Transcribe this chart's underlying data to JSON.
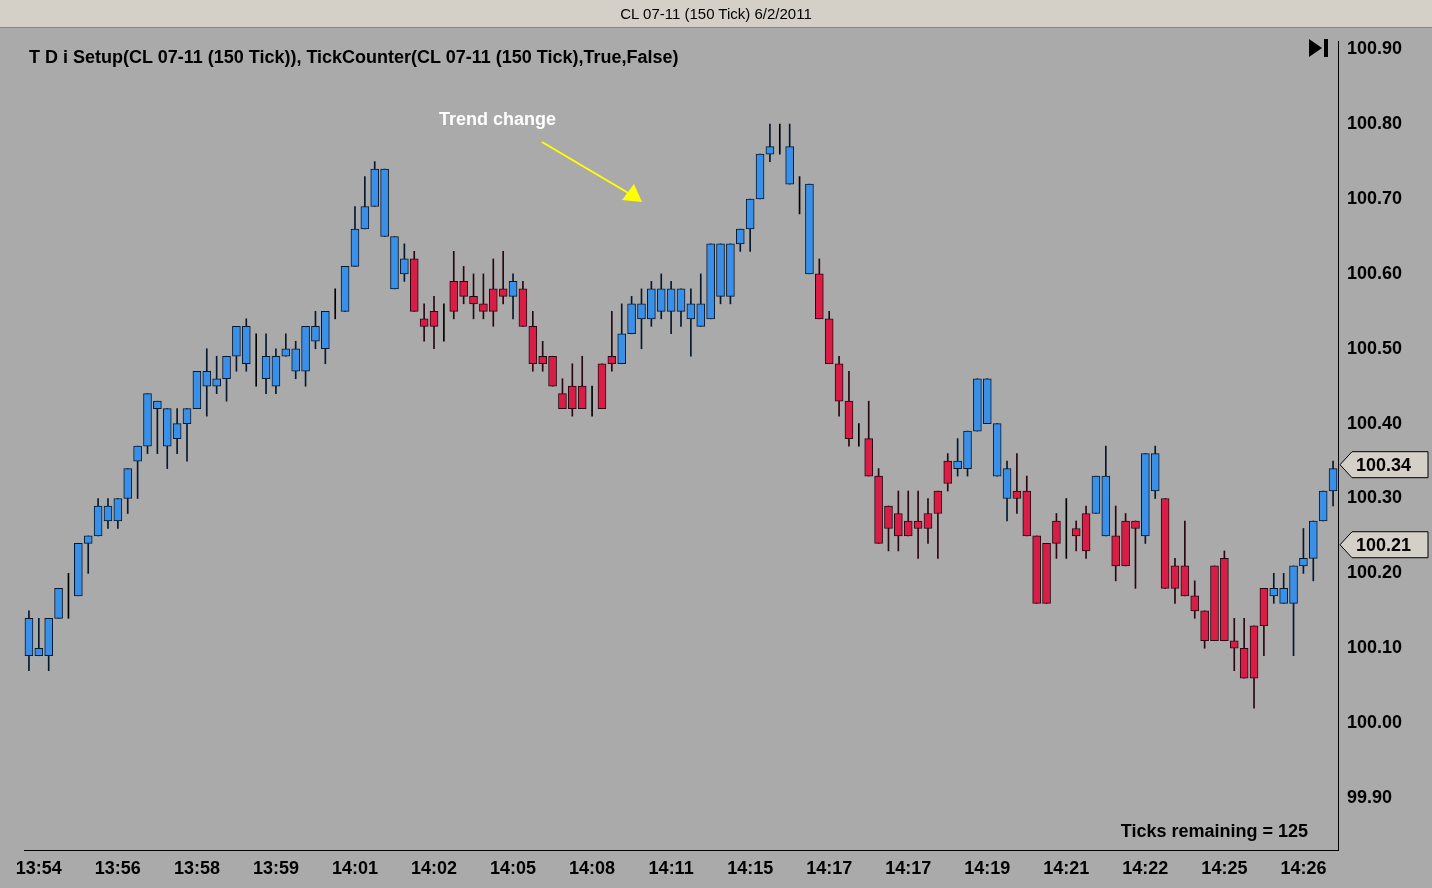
{
  "chart_data": {
    "type": "candlestick",
    "title": "CL 07-11 (150 Tick)  6/2/2011",
    "subtitle": "T D i Setup(CL 07-11 (150 Tick)), TickCounter(CL 07-11 (150 Tick),True,False)",
    "categories": [
      null,
      "13:54",
      null,
      null,
      null,
      null,
      null,
      null,
      null,
      "13:56",
      null,
      null,
      null,
      null,
      null,
      null,
      null,
      "13:58",
      null,
      null,
      null,
      null,
      null,
      null,
      null,
      "13:59",
      null,
      null,
      null,
      null,
      null,
      null,
      null,
      "14:01",
      null,
      null,
      null,
      null,
      null,
      null,
      null,
      "14:02",
      null,
      null,
      null,
      null,
      null,
      null,
      null,
      "14:05",
      null,
      null,
      null,
      null,
      null,
      null,
      null,
      "14:08",
      null,
      null,
      null,
      null,
      null,
      null,
      null,
      "14:11",
      null,
      null,
      null,
      null,
      null,
      null,
      null,
      "14:15",
      null,
      null,
      null,
      null,
      null,
      null,
      null,
      "14:17",
      null,
      null,
      null,
      null,
      null,
      null,
      null,
      "14:17",
      null,
      null,
      null,
      null,
      null,
      null,
      null,
      "14:19",
      null,
      null,
      null,
      null,
      null,
      null,
      null,
      "14:21",
      null,
      null,
      null,
      null,
      null,
      null,
      null,
      "14:22",
      null,
      null,
      null,
      null,
      null,
      null,
      null,
      "14:25",
      null,
      null,
      null,
      null,
      null,
      null,
      null,
      "14:26",
      null,
      null,
      null
    ],
    "ohlc": [
      [
        100.09,
        100.15,
        100.07,
        100.14
      ],
      [
        100.09,
        100.14,
        100.09,
        100.1
      ],
      [
        100.09,
        100.14,
        100.07,
        100.14
      ],
      [
        100.14,
        100.18,
        100.14,
        100.18
      ],
      [
        100.17,
        100.2,
        100.14,
        100.17
      ],
      [
        100.17,
        100.24,
        100.17,
        100.24
      ],
      [
        100.24,
        100.25,
        100.2,
        100.25
      ],
      [
        100.25,
        100.3,
        100.25,
        100.29
      ],
      [
        100.27,
        100.3,
        100.26,
        100.29
      ],
      [
        100.27,
        100.3,
        100.26,
        100.3
      ],
      [
        100.3,
        100.34,
        100.28,
        100.34
      ],
      [
        100.35,
        100.37,
        100.3,
        100.37
      ],
      [
        100.37,
        100.44,
        100.36,
        100.44
      ],
      [
        100.42,
        100.43,
        100.36,
        100.43
      ],
      [
        100.37,
        100.42,
        100.34,
        100.42
      ],
      [
        100.38,
        100.42,
        100.36,
        100.4
      ],
      [
        100.4,
        100.42,
        100.35,
        100.42
      ],
      [
        100.42,
        100.47,
        100.42,
        100.47
      ],
      [
        100.45,
        100.5,
        100.41,
        100.47
      ],
      [
        100.45,
        100.49,
        100.44,
        100.46
      ],
      [
        100.46,
        100.49,
        100.43,
        100.49
      ],
      [
        100.49,
        100.53,
        100.47,
        100.53
      ],
      [
        100.48,
        100.54,
        100.47,
        100.53
      ],
      [
        100.49,
        100.52,
        100.45,
        100.49
      ],
      [
        100.46,
        100.52,
        100.44,
        100.49
      ],
      [
        100.45,
        100.5,
        100.44,
        100.49
      ],
      [
        100.49,
        100.52,
        100.49,
        100.5
      ],
      [
        100.47,
        100.51,
        100.46,
        100.5
      ],
      [
        100.47,
        100.53,
        100.45,
        100.53
      ],
      [
        100.51,
        100.55,
        100.5,
        100.53
      ],
      [
        100.5,
        100.55,
        100.48,
        100.55
      ],
      [
        100.55,
        100.58,
        100.54,
        100.55
      ],
      [
        100.55,
        100.61,
        100.55,
        100.61
      ],
      [
        100.61,
        100.69,
        100.61,
        100.66
      ],
      [
        100.66,
        100.73,
        100.66,
        100.69
      ],
      [
        100.69,
        100.75,
        100.69,
        100.74
      ],
      [
        100.65,
        100.74,
        100.65,
        100.74
      ],
      [
        100.58,
        100.65,
        100.58,
        100.65
      ],
      [
        100.6,
        100.64,
        100.59,
        100.62
      ],
      [
        100.62,
        100.63,
        100.55,
        100.55
      ],
      [
        100.54,
        100.56,
        100.51,
        100.53
      ],
      [
        100.55,
        100.57,
        100.5,
        100.53
      ],
      [
        100.55,
        100.56,
        100.51,
        100.55
      ],
      [
        100.59,
        100.63,
        100.54,
        100.55
      ],
      [
        100.59,
        100.61,
        100.56,
        100.57
      ],
      [
        100.57,
        100.6,
        100.54,
        100.56
      ],
      [
        100.56,
        100.6,
        100.54,
        100.55
      ],
      [
        100.58,
        100.62,
        100.53,
        100.55
      ],
      [
        100.58,
        100.63,
        100.56,
        100.57
      ],
      [
        100.57,
        100.6,
        100.54,
        100.59
      ],
      [
        100.58,
        100.59,
        100.53,
        100.53
      ],
      [
        100.53,
        100.55,
        100.47,
        100.48
      ],
      [
        100.49,
        100.51,
        100.47,
        100.48
      ],
      [
        100.49,
        100.49,
        100.45,
        100.45
      ],
      [
        100.44,
        100.46,
        100.42,
        100.42
      ],
      [
        100.45,
        100.48,
        100.41,
        100.42
      ],
      [
        100.45,
        100.49,
        100.42,
        100.42
      ],
      [
        100.42,
        100.45,
        100.41,
        100.42
      ],
      [
        100.48,
        100.48,
        100.42,
        100.42
      ],
      [
        100.49,
        100.55,
        100.47,
        100.48
      ],
      [
        100.48,
        100.56,
        100.48,
        100.52
      ],
      [
        100.52,
        100.57,
        100.52,
        100.56
      ],
      [
        100.54,
        100.58,
        100.5,
        100.56
      ],
      [
        100.54,
        100.59,
        100.53,
        100.58
      ],
      [
        100.55,
        100.6,
        100.54,
        100.58
      ],
      [
        100.55,
        100.59,
        100.52,
        100.58
      ],
      [
        100.55,
        100.58,
        100.53,
        100.58
      ],
      [
        100.54,
        100.58,
        100.49,
        100.56
      ],
      [
        100.53,
        100.6,
        100.53,
        100.56
      ],
      [
        100.54,
        100.64,
        100.54,
        100.64
      ],
      [
        100.57,
        100.64,
        100.56,
        100.64
      ],
      [
        100.57,
        100.64,
        100.56,
        100.64
      ],
      [
        100.64,
        100.66,
        100.63,
        100.66
      ],
      [
        100.66,
        100.7,
        100.63,
        100.7
      ],
      [
        100.7,
        100.76,
        100.7,
        100.76
      ],
      [
        100.76,
        100.8,
        100.75,
        100.77
      ],
      [
        100.77,
        100.8,
        100.76,
        100.77
      ],
      [
        100.72,
        100.8,
        100.72,
        100.77
      ],
      [
        100.72,
        100.73,
        100.68,
        100.72
      ],
      [
        100.6,
        100.72,
        100.6,
        100.72
      ],
      [
        100.6,
        100.62,
        100.54,
        100.54
      ],
      [
        100.54,
        100.55,
        100.48,
        100.48
      ],
      [
        100.48,
        100.49,
        100.41,
        100.43
      ],
      [
        100.43,
        100.47,
        100.37,
        100.38
      ],
      [
        100.38,
        100.4,
        100.37,
        100.38
      ],
      [
        100.38,
        100.43,
        100.33,
        100.33
      ],
      [
        100.33,
        100.34,
        100.24,
        100.24
      ],
      [
        100.29,
        100.29,
        100.23,
        100.26
      ],
      [
        100.28,
        100.31,
        100.23,
        100.25
      ],
      [
        100.27,
        100.31,
        100.25,
        100.25
      ],
      [
        100.27,
        100.31,
        100.22,
        100.26
      ],
      [
        100.28,
        100.3,
        100.24,
        100.26
      ],
      [
        100.31,
        100.31,
        100.22,
        100.28
      ],
      [
        100.35,
        100.36,
        100.31,
        100.32
      ],
      [
        100.34,
        100.38,
        100.33,
        100.35
      ],
      [
        100.34,
        100.39,
        100.33,
        100.39
      ],
      [
        100.39,
        100.46,
        100.39,
        100.46
      ],
      [
        100.4,
        100.46,
        100.4,
        100.46
      ],
      [
        100.33,
        100.4,
        100.33,
        100.4
      ],
      [
        100.3,
        100.35,
        100.27,
        100.34
      ],
      [
        100.31,
        100.36,
        100.28,
        100.3
      ],
      [
        100.31,
        100.33,
        100.25,
        100.25
      ],
      [
        100.25,
        100.25,
        100.16,
        100.16
      ],
      [
        100.24,
        100.24,
        100.16,
        100.16
      ],
      [
        100.27,
        100.28,
        100.22,
        100.24
      ],
      [
        100.27,
        100.3,
        100.22,
        100.27
      ],
      [
        100.26,
        100.27,
        100.23,
        100.25
      ],
      [
        100.28,
        100.29,
        100.22,
        100.23
      ],
      [
        100.28,
        100.33,
        100.28,
        100.33
      ],
      [
        100.25,
        100.37,
        100.25,
        100.33
      ],
      [
        100.25,
        100.29,
        100.19,
        100.21
      ],
      [
        100.27,
        100.28,
        100.21,
        100.21
      ],
      [
        100.27,
        100.27,
        100.18,
        100.26
      ],
      [
        100.25,
        100.36,
        100.24,
        100.36
      ],
      [
        100.31,
        100.37,
        100.3,
        100.36
      ],
      [
        100.3,
        100.3,
        100.18,
        100.18
      ],
      [
        100.21,
        100.22,
        100.16,
        100.18
      ],
      [
        100.21,
        100.27,
        100.17,
        100.17
      ],
      [
        100.17,
        100.19,
        100.14,
        100.15
      ],
      [
        100.15,
        100.15,
        100.1,
        100.11
      ],
      [
        100.21,
        100.21,
        100.11,
        100.11
      ],
      [
        100.22,
        100.23,
        100.11,
        100.11
      ],
      [
        100.11,
        100.14,
        100.07,
        100.1
      ],
      [
        100.1,
        100.14,
        100.06,
        100.06
      ],
      [
        100.13,
        100.13,
        100.02,
        100.06
      ],
      [
        100.18,
        100.18,
        100.09,
        100.13
      ],
      [
        100.17,
        100.2,
        100.16,
        100.18
      ],
      [
        100.16,
        100.2,
        100.16,
        100.18
      ],
      [
        100.16,
        100.21,
        100.09,
        100.21
      ],
      [
        100.21,
        100.26,
        100.2,
        100.22
      ],
      [
        100.22,
        100.27,
        100.19,
        100.27
      ],
      [
        100.27,
        100.31,
        100.27,
        100.31
      ],
      [
        100.31,
        100.35,
        100.29,
        100.34
      ]
    ],
    "ylim": [
      99.83,
      100.91
    ],
    "yticks": [
      {
        "value": 99.9,
        "label": "99.90"
      },
      {
        "value": 100.0,
        "label": "100.00"
      },
      {
        "value": 100.1,
        "label": "100.10"
      },
      {
        "value": 100.2,
        "label": "100.20"
      },
      {
        "value": 100.3,
        "label": "100.30"
      },
      {
        "value": 100.4,
        "label": "100.40"
      },
      {
        "value": 100.5,
        "label": "100.50"
      },
      {
        "value": 100.6,
        "label": "100.60"
      },
      {
        "value": 100.7,
        "label": "100.70"
      },
      {
        "value": 100.8,
        "label": "100.80"
      },
      {
        "value": 100.9,
        "label": "100.90"
      }
    ],
    "annotations": [
      "Trend change",
      "Ticks remaining = 125",
      "100.34",
      "100.21"
    ],
    "grid": false,
    "legend": false
  }
}
